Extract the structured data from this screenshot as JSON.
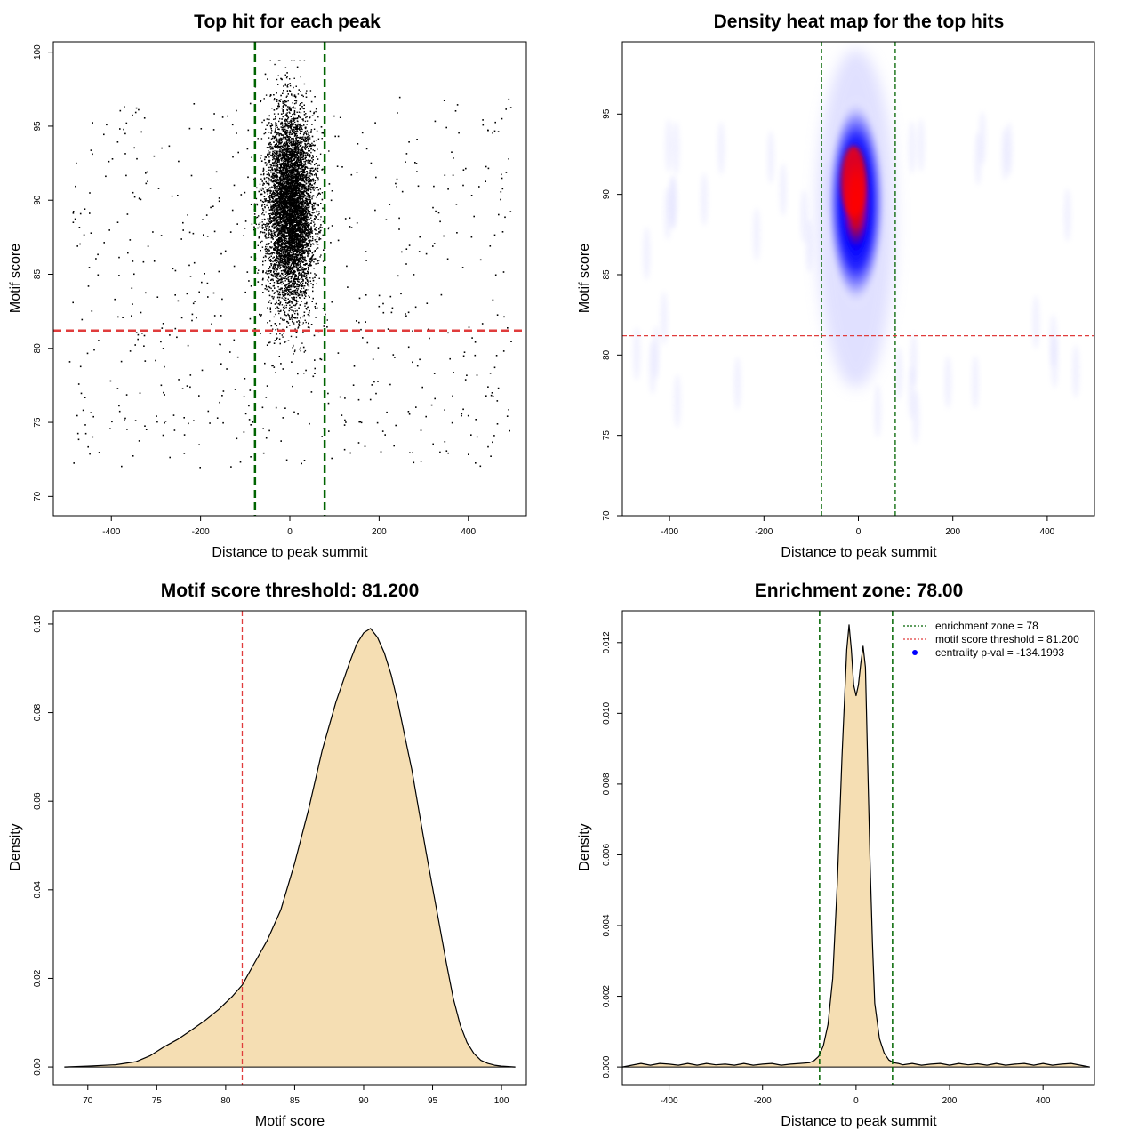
{
  "chart_data": [
    {
      "type": "scatter",
      "title": "Top hit for each peak",
      "xlabel": "Distance to peak summit",
      "ylabel": "Motif score",
      "xlim": [
        -530,
        530
      ],
      "ylim": [
        68.7,
        100.7
      ],
      "x_ticks": [
        -400,
        -200,
        0,
        200,
        400
      ],
      "x_tick_labels": [
        "-400",
        "-200",
        "0",
        "200",
        "400"
      ],
      "y_ticks": [
        70,
        75,
        80,
        85,
        90,
        95,
        100
      ],
      "y_tick_labels": [
        "70",
        "75",
        "80",
        "85",
        "90",
        "95",
        "100"
      ],
      "enrichment_zone": [
        -78,
        78
      ],
      "threshold": 81.2,
      "central_points": {
        "count": 9000,
        "x_center": 0,
        "x_sd": 26,
        "y_center": 89.5,
        "y_sd": 3.2
      },
      "background_points": {
        "count": 650,
        "x_range": [
          -495,
          495
        ],
        "y_range": [
          72,
          97
        ]
      },
      "colors": {
        "points": "#000000",
        "zone": "#006400",
        "threshold": "#e03c3c"
      }
    },
    {
      "type": "heatmap",
      "title": "Density heat map for the top hits",
      "xlabel": "Distance to peak summit",
      "ylabel": "Motif score",
      "xlim": [
        -500,
        500
      ],
      "ylim": [
        70,
        99.5
      ],
      "x_ticks": [
        -400,
        -200,
        0,
        200,
        400
      ],
      "x_tick_labels": [
        "-400",
        "-200",
        "0",
        "200",
        "400"
      ],
      "y_ticks": [
        70,
        75,
        80,
        85,
        90,
        95
      ],
      "y_tick_labels": [
        "70",
        "75",
        "80",
        "85",
        "90",
        "95"
      ],
      "enrichment_zone": [
        -78,
        78
      ],
      "threshold": 81.2,
      "density_peak": {
        "x": -10,
        "y": 90.8
      },
      "colors": {
        "low": "#ffffff",
        "mid": "#0000ff",
        "high": "#ff0000",
        "zone": "#006400",
        "threshold": "#e03c3c"
      }
    },
    {
      "type": "area",
      "title": "Motif score threshold: 81.200",
      "xlabel": "Motif score",
      "ylabel": "Density",
      "xlim": [
        67.5,
        101.8
      ],
      "ylim": [
        -0.004,
        0.103
      ],
      "x_ticks": [
        70,
        75,
        80,
        85,
        90,
        95,
        100
      ],
      "x_tick_labels": [
        "70",
        "75",
        "80",
        "85",
        "90",
        "95",
        "100"
      ],
      "y_ticks": [
        0,
        0.02,
        0.04,
        0.06,
        0.08,
        0.1
      ],
      "y_tick_labels": [
        "0.00",
        "0.02",
        "0.04",
        "0.06",
        "0.08",
        "0.10"
      ],
      "x": [
        68.3,
        70,
        72,
        73.5,
        74.5,
        75.5,
        76.5,
        77.5,
        78.5,
        79.5,
        80.5,
        81.2,
        82,
        83,
        84,
        85,
        86,
        87,
        88,
        89,
        89.5,
        90,
        90.5,
        91,
        91.5,
        92,
        92.5,
        93,
        93.5,
        94,
        94.5,
        95,
        95.5,
        96,
        96.5,
        97,
        97.5,
        98,
        98.5,
        99,
        99.5,
        100,
        100.5,
        101
      ],
      "values": [
        0,
        0.0002,
        0.0005,
        0.0012,
        0.0025,
        0.0045,
        0.0062,
        0.0083,
        0.0105,
        0.013,
        0.016,
        0.0185,
        0.023,
        0.0285,
        0.0355,
        0.046,
        0.058,
        0.0715,
        0.0825,
        0.0915,
        0.0955,
        0.098,
        0.099,
        0.097,
        0.0935,
        0.0885,
        0.082,
        0.0745,
        0.067,
        0.058,
        0.049,
        0.0405,
        0.032,
        0.0235,
        0.0155,
        0.0095,
        0.0055,
        0.003,
        0.0015,
        0.0008,
        0.0004,
        0.0002,
        0.0001,
        0
      ],
      "threshold": 81.2,
      "colors": {
        "fill": "#f5deb3",
        "line": "#000000",
        "threshold": "#e03c3c"
      }
    },
    {
      "type": "area",
      "title": "Enrichment zone: 78.00",
      "xlabel": "Distance to peak summit",
      "ylabel": "Density",
      "xlim": [
        -500,
        510
      ],
      "ylim": [
        -0.0005,
        0.0129
      ],
      "x_ticks": [
        -400,
        -200,
        0,
        200,
        400
      ],
      "x_tick_labels": [
        "-400",
        "-200",
        "0",
        "200",
        "400"
      ],
      "y_ticks": [
        0,
        0.002,
        0.004,
        0.006,
        0.008,
        0.01,
        0.012
      ],
      "y_tick_labels": [
        "0.000",
        "0.002",
        "0.004",
        "0.006",
        "0.008",
        "0.010",
        "0.012"
      ],
      "x": [
        -500,
        -480,
        -460,
        -440,
        -420,
        -400,
        -380,
        -360,
        -340,
        -320,
        -300,
        -280,
        -260,
        -240,
        -220,
        -200,
        -180,
        -160,
        -140,
        -120,
        -100,
        -90,
        -80,
        -70,
        -60,
        -50,
        -40,
        -30,
        -20,
        -15,
        -10,
        -5,
        0,
        5,
        10,
        15,
        20,
        25,
        30,
        35,
        40,
        50,
        60,
        70,
        80,
        90,
        100,
        120,
        140,
        160,
        180,
        200,
        220,
        240,
        260,
        280,
        300,
        320,
        340,
        360,
        380,
        400,
        420,
        440,
        460,
        480,
        500
      ],
      "values": [
        0,
        5e-05,
        0.0001,
        5e-05,
        0.0001,
        8e-05,
        5e-05,
        0.0001,
        5e-05,
        0.0001,
        6e-05,
        8e-05,
        5e-05,
        0.0001,
        5e-05,
        8e-05,
        0.0001,
        5e-05,
        8e-05,
        0.0001,
        0.00012,
        0.00018,
        0.0003,
        0.0006,
        0.0012,
        0.0025,
        0.0052,
        0.0088,
        0.0118,
        0.0125,
        0.0118,
        0.0108,
        0.0105,
        0.0108,
        0.0114,
        0.0119,
        0.0113,
        0.0085,
        0.0058,
        0.0035,
        0.0018,
        0.0008,
        0.0004,
        0.0002,
        0.00012,
        0.0001,
        6e-05,
        0.0001,
        5e-05,
        8e-05,
        0.0001,
        5e-05,
        0.0001,
        6e-05,
        9e-05,
        5e-05,
        0.0001,
        5e-05,
        8e-05,
        0.0001,
        5e-05,
        0.0001,
        5e-05,
        8e-05,
        0.0001,
        5e-05,
        0
      ],
      "enrichment_zone": [
        -78,
        78
      ],
      "colors": {
        "fill": "#f5deb3",
        "line": "#000000",
        "zone": "#006400",
        "threshold": "#e03c3c",
        "pval": "#0000ff"
      },
      "legend": [
        {
          "label": "enrichment zone = 78",
          "color": "#006400",
          "style": "dotted-line"
        },
        {
          "label": "motif score threshold = 81.200",
          "color": "#e03c3c",
          "style": "dotted-line"
        },
        {
          "label": "centrality p-val = -134.1993",
          "color": "#0000ff",
          "style": "dot"
        }
      ],
      "legend_position": "top-right"
    }
  ]
}
